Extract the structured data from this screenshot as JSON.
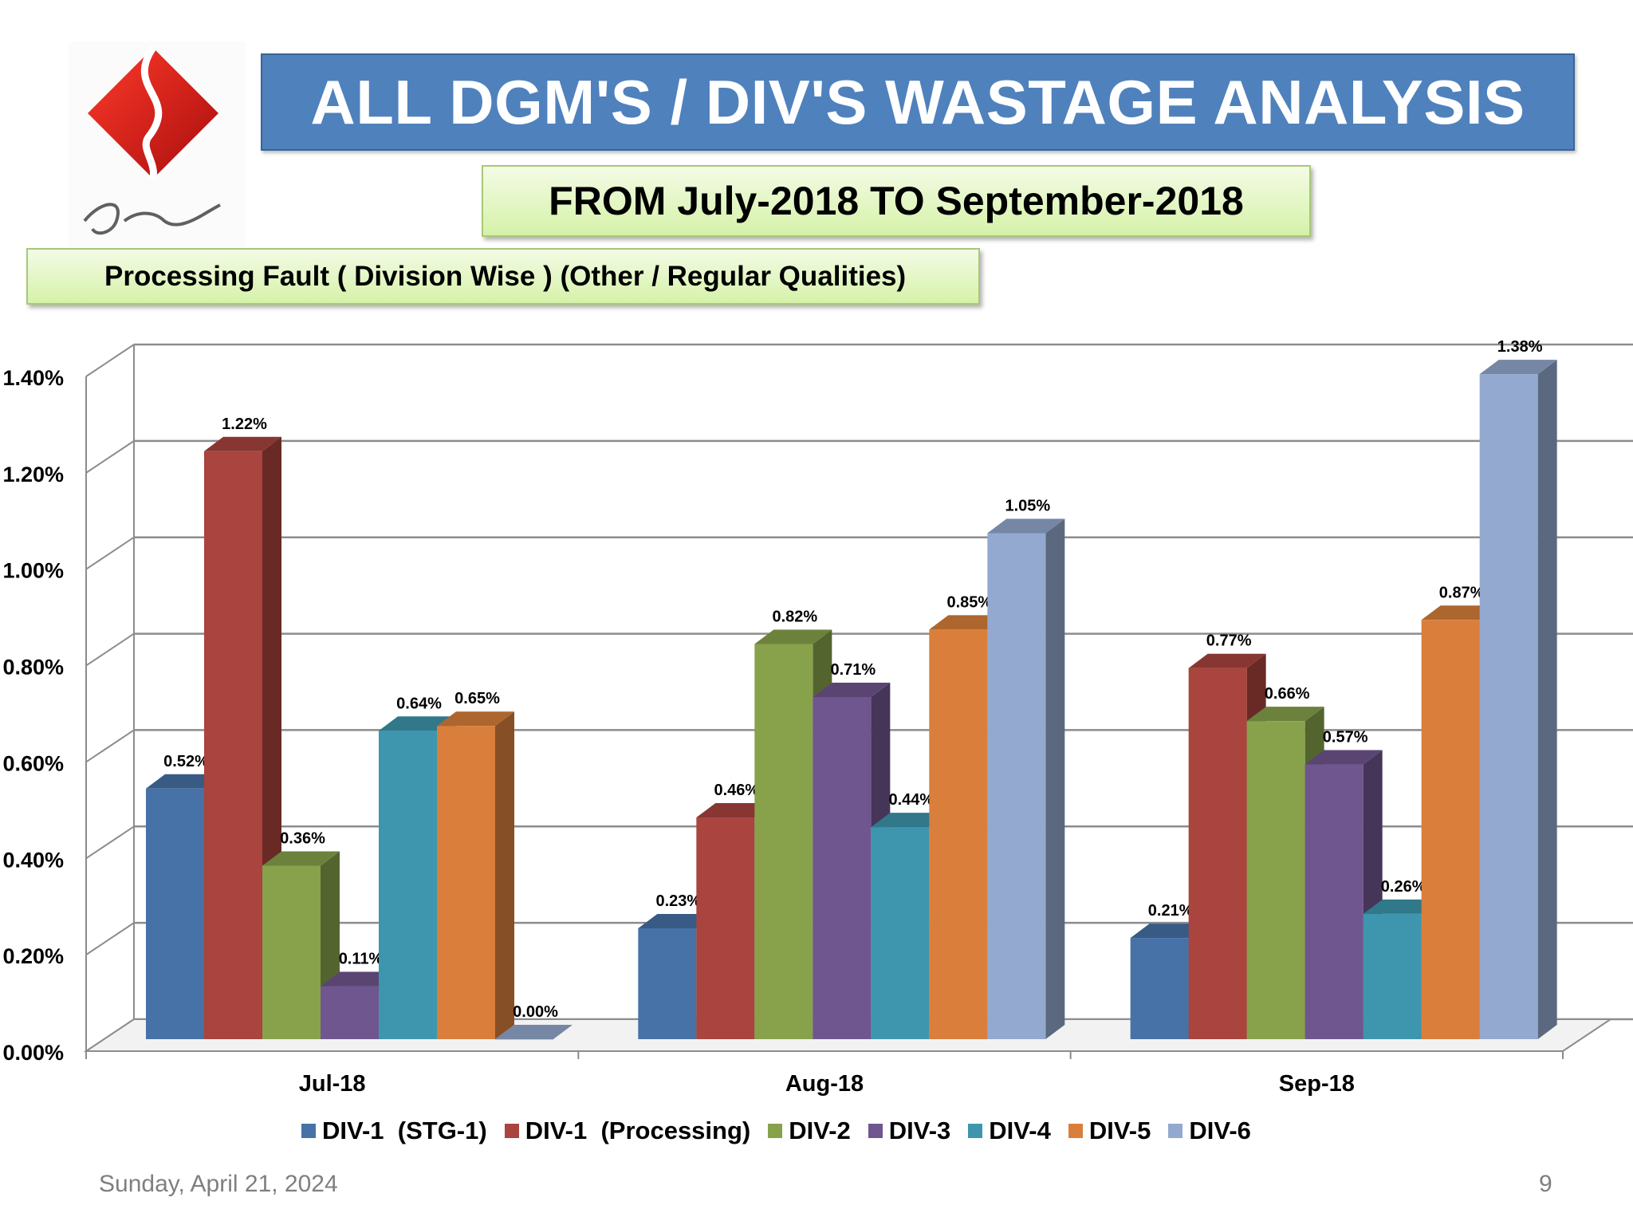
{
  "slide": {
    "title": "ALL DGM'S / DIV'S  WASTAGE ANALYSIS",
    "subtitle": "FROM July-2018 TO September-2018",
    "section_label": "Processing Fault ( Division Wise ) (Other / Regular Qualities)",
    "logo_signature": "Sadaqat",
    "footer_date": "Sunday, April 21, 2024",
    "page_number": "9"
  },
  "chart_data": {
    "type": "bar",
    "title": "",
    "xlabel": "",
    "ylabel": "",
    "categories": [
      "Jul-18",
      "Aug-18",
      "Sep-18"
    ],
    "ylim": [
      0,
      1.4
    ],
    "yticks": [
      "0.00%",
      "0.20%",
      "0.40%",
      "0.60%",
      "0.80%",
      "1.00%",
      "1.20%",
      "1.40%"
    ],
    "grid": true,
    "legend_position": "bottom",
    "series": [
      {
        "name": "DIV-1  (STG-1)",
        "color": "#4672a8",
        "values": [
          0.52,
          0.23,
          0.21
        ],
        "labels": [
          "0.52%",
          "0.23%",
          "0.21%"
        ]
      },
      {
        "name": "DIV-1  (Processing)",
        "color": "#a9443e",
        "values": [
          1.22,
          0.46,
          0.77
        ],
        "labels": [
          "1.22%",
          "0.46%",
          "0.77%"
        ]
      },
      {
        "name": "DIV-2",
        "color": "#87a24b",
        "values": [
          0.36,
          0.82,
          0.66
        ],
        "labels": [
          "0.36%",
          "0.82%",
          "0.66%"
        ]
      },
      {
        "name": "DIV-3",
        "color": "#70568f",
        "values": [
          0.11,
          0.71,
          0.57
        ],
        "labels": [
          "0.11%",
          "0.71%",
          "0.57%"
        ]
      },
      {
        "name": "DIV-4",
        "color": "#3d96ae",
        "values": [
          0.64,
          0.44,
          0.26
        ],
        "labels": [
          "0.64%",
          "0.44%",
          "0.26%"
        ]
      },
      {
        "name": "DIV-5",
        "color": "#d97f3b",
        "values": [
          0.65,
          0.85,
          0.87
        ],
        "labels": [
          "0.65%",
          "0.85%",
          "0.87%"
        ]
      },
      {
        "name": "DIV-6",
        "color": "#93a9cf",
        "values": [
          0.0,
          1.05,
          1.38
        ],
        "labels": [
          "0.00%",
          "1.05%",
          "1.38%"
        ]
      }
    ]
  }
}
